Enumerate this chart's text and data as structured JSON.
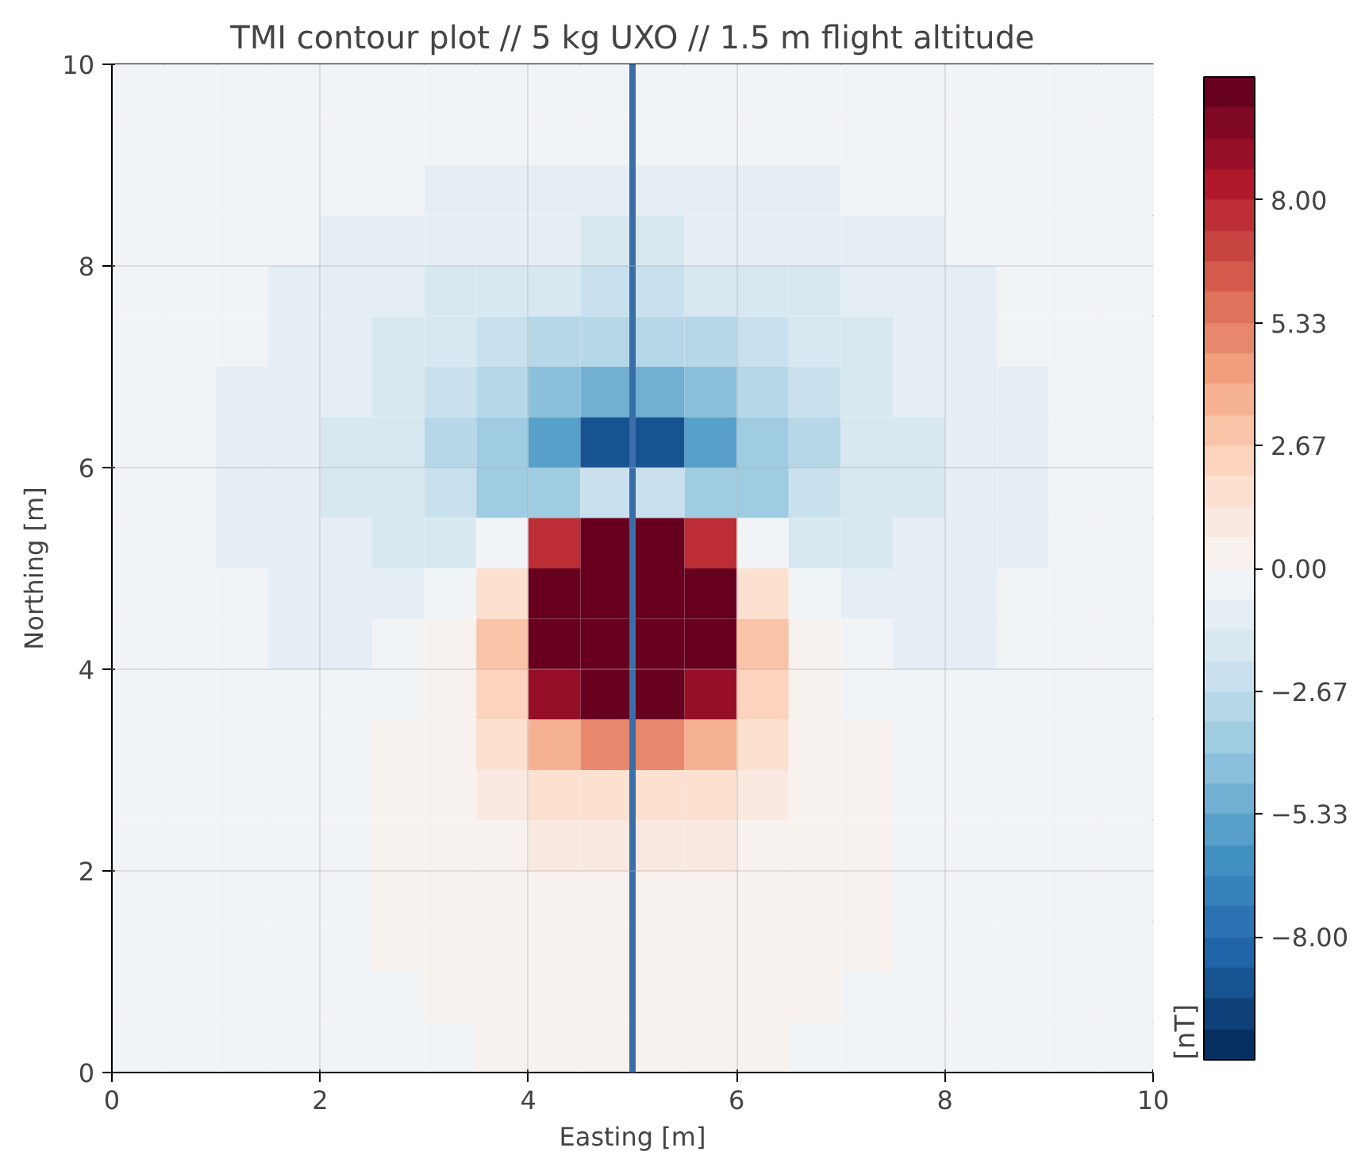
{
  "chart_data": {
    "type": "heatmap",
    "title": "TMI contour plot // 5 kg UXO // 1.5 m flight altitude",
    "xlabel": "Easting [m]",
    "ylabel": "Northing [m]",
    "clabel": "[nT]",
    "xlim": [
      0,
      10
    ],
    "ylim": [
      0,
      10
    ],
    "xticks": [
      0,
      2,
      4,
      6,
      8,
      10
    ],
    "yticks": [
      0,
      2,
      4,
      6,
      8,
      10
    ],
    "grid": true,
    "clim": [
      -10.67,
      10.67
    ],
    "cticks": [
      {
        "value": -8,
        "label": "−8.00"
      },
      {
        "value": -5.33,
        "label": "−5.33"
      },
      {
        "value": -2.67,
        "label": "−2.67"
      },
      {
        "value": 0,
        "label": "0.00"
      },
      {
        "value": 2.67,
        "label": "2.67"
      },
      {
        "value": 5.33,
        "label": "5.33"
      },
      {
        "value": 8,
        "label": "8.00"
      }
    ],
    "ref_lines": [
      {
        "axis": "x",
        "value": 5,
        "color": "#3a6ea8"
      }
    ],
    "x": [
      0.25,
      0.75,
      1.25,
      1.75,
      2.25,
      2.75,
      3.25,
      3.75,
      4.25,
      4.75,
      5.25,
      5.75,
      6.25,
      6.75,
      7.25,
      7.75,
      8.25,
      8.75,
      9.25,
      9.75
    ],
    "y": [
      9.75,
      9.25,
      8.75,
      8.25,
      7.75,
      7.25,
      6.75,
      6.25,
      5.75,
      5.25,
      4.75,
      4.25,
      3.75,
      3.25,
      2.75,
      2.25,
      1.75,
      1.25,
      0.75,
      0.25
    ],
    "cells": [
      [
        -0.2,
        -0.2,
        -0.25,
        -0.3,
        -0.3,
        -0.35,
        -0.35,
        -0.4,
        -0.4,
        -0.4,
        -0.4,
        -0.4,
        -0.4,
        -0.35,
        -0.35,
        -0.3,
        -0.3,
        -0.25,
        -0.2,
        -0.2
      ],
      [
        -0.2,
        -0.25,
        -0.3,
        -0.35,
        -0.4,
        -0.45,
        -0.5,
        -0.55,
        -0.6,
        -0.6,
        -0.6,
        -0.6,
        -0.55,
        -0.5,
        -0.45,
        -0.4,
        -0.35,
        -0.3,
        -0.25,
        -0.2
      ],
      [
        -0.25,
        -0.3,
        -0.35,
        -0.45,
        -0.55,
        -0.65,
        -0.75,
        -0.8,
        -0.85,
        -0.9,
        -0.9,
        -0.85,
        -0.8,
        -0.75,
        -0.65,
        -0.55,
        -0.45,
        -0.35,
        -0.3,
        -0.25
      ],
      [
        -0.3,
        -0.35,
        -0.45,
        -0.6,
        -0.75,
        -0.9,
        -1.05,
        -1.2,
        -1.3,
        -1.35,
        -1.35,
        -1.3,
        -1.2,
        -1.05,
        -0.9,
        -0.75,
        -0.6,
        -0.45,
        -0.35,
        -0.3
      ],
      [
        -0.3,
        -0.4,
        -0.55,
        -0.75,
        -0.95,
        -1.2,
        -1.5,
        -1.75,
        -1.95,
        -2.05,
        -2.05,
        -1.95,
        -1.75,
        -1.5,
        -1.2,
        -0.95,
        -0.75,
        -0.55,
        -0.4,
        -0.3
      ],
      [
        -0.35,
        -0.45,
        -0.65,
        -0.85,
        -1.15,
        -1.5,
        -1.95,
        -2.45,
        -2.85,
        -3.05,
        -3.05,
        -2.85,
        -2.45,
        -1.95,
        -1.5,
        -1.15,
        -0.85,
        -0.65,
        -0.45,
        -0.35
      ],
      [
        -0.35,
        -0.5,
        -0.7,
        -0.95,
        -1.3,
        -1.8,
        -2.45,
        -3.3,
        -4.2,
        -4.7,
        -4.7,
        -4.2,
        -3.3,
        -2.45,
        -1.8,
        -1.3,
        -0.95,
        -0.7,
        -0.5,
        -0.35
      ],
      [
        -0.4,
        -0.55,
        -0.75,
        -1.05,
        -1.45,
        -2.0,
        -2.8,
        -4.0,
        -6.0,
        -8.8,
        -8.8,
        -6.0,
        -4.0,
        -2.8,
        -2.0,
        -1.45,
        -1.05,
        -0.75,
        -0.55,
        -0.4
      ],
      [
        -0.4,
        -0.55,
        -0.75,
        -1.0,
        -1.4,
        -1.9,
        -2.6,
        -3.5,
        -3.8,
        -2.5,
        -2.5,
        -3.8,
        -3.5,
        -2.6,
        -1.9,
        -1.4,
        -1.0,
        -0.75,
        -0.55,
        -0.4
      ],
      [
        -0.35,
        -0.5,
        -0.7,
        -0.95,
        -1.3,
        -1.6,
        -1.6,
        -0.3,
        8,
        10.5,
        10.5,
        8,
        -0.3,
        -1.6,
        -1.6,
        -1.3,
        -0.95,
        -0.7,
        -0.5,
        -0.35
      ],
      [
        -0.35,
        -0.45,
        -0.65,
        -0.85,
        -1.1,
        -1.2,
        -0.5,
        1.5,
        10.5,
        10.5,
        10.5,
        10.5,
        1.5,
        -0.5,
        -1.2,
        -1.1,
        -0.85,
        -0.65,
        -0.45,
        -0.35
      ],
      [
        -0.3,
        -0.4,
        -0.55,
        -0.7,
        -0.8,
        -0.6,
        0.2,
        3.0,
        10.5,
        10.5,
        10.5,
        10.5,
        3.0,
        0.2,
        -0.6,
        -0.8,
        -0.7,
        -0.55,
        -0.4,
        -0.3
      ],
      [
        -0.25,
        -0.3,
        -0.4,
        -0.45,
        -0.4,
        -0.1,
        0.5,
        2.5,
        9,
        10.5,
        10.5,
        9,
        2.5,
        0.5,
        -0.1,
        -0.4,
        -0.45,
        -0.4,
        -0.3,
        -0.25
      ],
      [
        -0.2,
        -0.25,
        -0.25,
        -0.25,
        -0.15,
        0.1,
        0.5,
        1.5,
        3.5,
        5.0,
        5.0,
        3.5,
        1.5,
        0.5,
        0.1,
        -0.15,
        -0.25,
        -0.25,
        -0.25,
        -0.2
      ],
      [
        -0.15,
        -0.2,
        -0.2,
        -0.15,
        -0.1,
        0.1,
        0.4,
        0.9,
        1.6,
        1.9,
        1.9,
        1.6,
        0.9,
        0.4,
        0.1,
        -0.1,
        -0.15,
        -0.2,
        -0.2,
        -0.15
      ],
      [
        -0.15,
        -0.15,
        -0.15,
        -0.1,
        -0.05,
        0.05,
        0.3,
        0.55,
        0.8,
        0.9,
        0.9,
        0.8,
        0.55,
        0.3,
        0.05,
        -0.05,
        -0.1,
        -0.15,
        -0.15,
        -0.15
      ],
      [
        -0.1,
        -0.1,
        -0.1,
        -0.1,
        -0.05,
        0.0,
        0.2,
        0.35,
        0.5,
        0.55,
        0.55,
        0.5,
        0.35,
        0.2,
        0.0,
        -0.05,
        -0.1,
        -0.1,
        -0.1,
        -0.1
      ],
      [
        -0.1,
        -0.1,
        -0.1,
        -0.1,
        -0.05,
        0.0,
        0.1,
        0.2,
        0.3,
        0.35,
        0.35,
        0.3,
        0.2,
        0.1,
        0.0,
        -0.05,
        -0.1,
        -0.1,
        -0.1,
        -0.1
      ],
      [
        -0.1,
        -0.1,
        -0.1,
        -0.1,
        -0.05,
        -0.05,
        0.0,
        0.05,
        0.1,
        0.15,
        0.15,
        0.1,
        0.05,
        0.0,
        -0.05,
        -0.05,
        -0.1,
        -0.1,
        -0.1,
        -0.1
      ],
      [
        -0.1,
        -0.1,
        -0.1,
        -0.1,
        -0.1,
        -0.05,
        -0.05,
        0.0,
        0.05,
        0.05,
        0.05,
        0.05,
        0.0,
        -0.05,
        -0.05,
        -0.1,
        -0.1,
        -0.1,
        -0.1,
        -0.1
      ]
    ]
  }
}
